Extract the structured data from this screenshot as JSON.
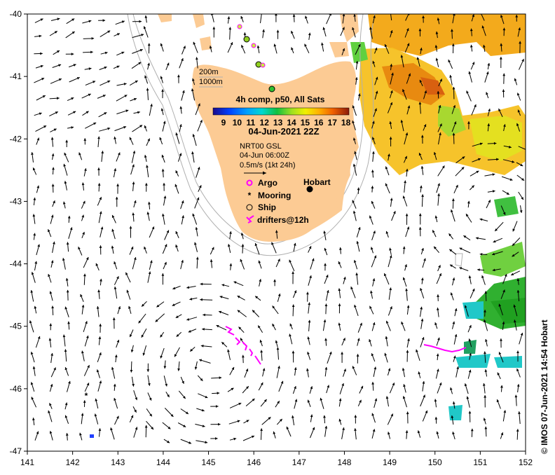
{
  "map": {
    "lon_range": [
      141,
      152
    ],
    "lat_range": [
      -47,
      -40
    ],
    "lon_ticks": [
      "141",
      "142",
      "143",
      "144",
      "145",
      "146",
      "147",
      "148",
      "149",
      "150",
      "151",
      "152"
    ],
    "lat_ticks": [
      "-40",
      "-41",
      "-42",
      "-43",
      "-44",
      "-45",
      "-46",
      "-47"
    ],
    "land_color": "#fccb94",
    "contour_color": "#b0b0b0"
  },
  "contours": {
    "label_200": "200m",
    "label_1000": "1000m"
  },
  "colorbar": {
    "title": "4h comp, p50, All Sats",
    "ticks": [
      "9",
      "10",
      "11",
      "12",
      "13",
      "14",
      "15",
      "16",
      "17",
      "18"
    ],
    "date": "04-Jun-2021 22Z"
  },
  "currents": {
    "source": "NRT00 GSL",
    "time": "04-Jun 06:00Z",
    "scale_label": "0.5m/s (1kt 24h)"
  },
  "legend": {
    "argo": "Argo",
    "mooring": "Mooring",
    "ship": "Ship",
    "drifters": "drifters@12h",
    "argo_color": "#ff00ff",
    "drifter_color": "#ff00ff"
  },
  "places": {
    "hobart": "Hobart"
  },
  "credit": "© IMOS 07-Jun-2021 14:54 Hobart"
}
